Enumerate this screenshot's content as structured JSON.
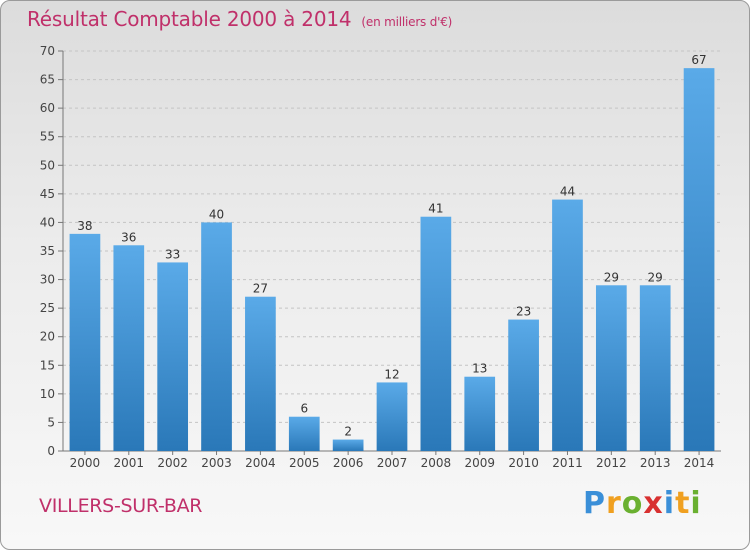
{
  "title": "Résultat Comptable 2000 à 2014",
  "subtitle": "(en milliers d'€)",
  "commune": "VILLERS-SUR-BAR",
  "logo": {
    "p": "P",
    "r": "r",
    "o": "o",
    "x": "x",
    "i1": "i",
    "t": "t",
    "i2": "i"
  },
  "colors": {
    "bar_top": "#5aaae8",
    "bar_bottom": "#2a78b8",
    "title": "#c0306a"
  },
  "chart_data": {
    "type": "bar",
    "title": "Résultat Comptable 2000 à 2014",
    "subtitle": "(en milliers d'€)",
    "categories": [
      "2000",
      "2001",
      "2002",
      "2003",
      "2004",
      "2005",
      "2006",
      "2007",
      "2008",
      "2009",
      "2010",
      "2011",
      "2012",
      "2013",
      "2014"
    ],
    "values": [
      38,
      36,
      33,
      40,
      27,
      6,
      2,
      12,
      41,
      13,
      23,
      44,
      29,
      29,
      67
    ],
    "ylim": [
      0,
      70
    ],
    "yticks": [
      0,
      5,
      10,
      15,
      20,
      25,
      30,
      35,
      40,
      45,
      50,
      55,
      60,
      65,
      70
    ],
    "grid": true,
    "data_labels": true
  }
}
